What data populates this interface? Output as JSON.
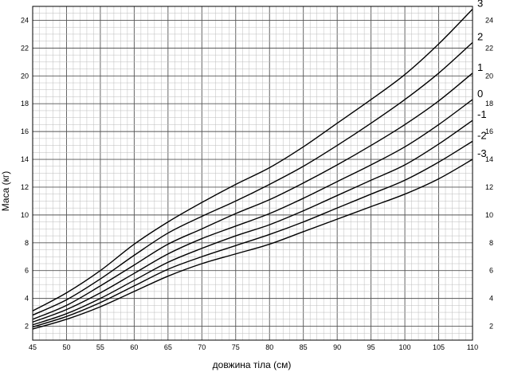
{
  "chart_data": {
    "type": "line",
    "xlabel": "довжина тіла (см)",
    "ylabel": "Маса (кг)",
    "xlim": [
      45,
      110
    ],
    "ylim": [
      1,
      25
    ],
    "x_ticks": [
      45,
      50,
      55,
      60,
      65,
      70,
      75,
      80,
      85,
      90,
      95,
      100,
      105,
      110
    ],
    "y_ticks": [
      2,
      4,
      6,
      8,
      10,
      12,
      14,
      16,
      18,
      20,
      22,
      24
    ],
    "grid": true,
    "legend": "curve labels at right end",
    "x": [
      45,
      50,
      55,
      60,
      65,
      70,
      75,
      80,
      85,
      90,
      95,
      100,
      105,
      110
    ],
    "series": [
      {
        "name": "3",
        "values": [
          3.1,
          4.4,
          6.0,
          7.9,
          9.5,
          10.9,
          12.2,
          13.4,
          14.9,
          16.6,
          18.3,
          20.1,
          22.3,
          24.8
        ]
      },
      {
        "name": "2",
        "values": [
          2.8,
          3.9,
          5.4,
          7.1,
          8.7,
          9.9,
          11.0,
          12.2,
          13.5,
          15.0,
          16.6,
          18.3,
          20.2,
          22.4
        ]
      },
      {
        "name": "1",
        "values": [
          2.5,
          3.5,
          4.9,
          6.4,
          7.9,
          9.0,
          10.1,
          11.1,
          12.3,
          13.6,
          15.0,
          16.5,
          18.2,
          20.2
        ]
      },
      {
        "name": "0",
        "values": [
          2.3,
          3.2,
          4.4,
          5.8,
          7.2,
          8.3,
          9.2,
          10.1,
          11.2,
          12.4,
          13.6,
          14.9,
          16.5,
          18.3
        ]
      },
      {
        "name": "-1",
        "values": [
          2.1,
          2.9,
          4.0,
          5.3,
          6.6,
          7.6,
          8.5,
          9.3,
          10.3,
          11.4,
          12.5,
          13.6,
          15.1,
          16.8
        ]
      },
      {
        "name": "-2",
        "values": [
          1.95,
          2.7,
          3.7,
          4.9,
          6.1,
          7.0,
          7.8,
          8.6,
          9.5,
          10.5,
          11.5,
          12.5,
          13.8,
          15.3
        ]
      },
      {
        "name": "-3",
        "values": [
          1.8,
          2.5,
          3.4,
          4.5,
          5.6,
          6.5,
          7.2,
          7.9,
          8.8,
          9.7,
          10.6,
          11.5,
          12.6,
          14.0
        ]
      }
    ]
  }
}
